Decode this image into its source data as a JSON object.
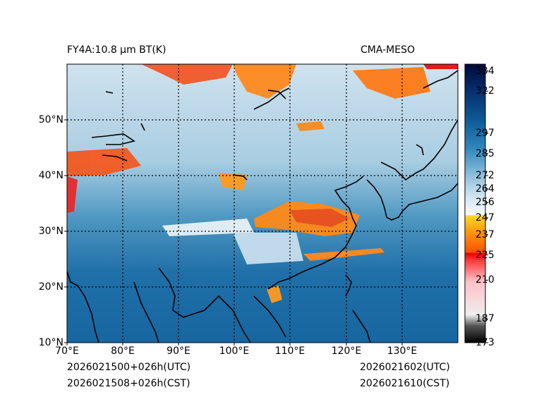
{
  "header": {
    "left_title": "FY4A:10.8 µm BT(K)",
    "right_title": "CMA-MESO"
  },
  "footer": {
    "init_utc": "2026021500+026h(UTC)",
    "init_cst": "2026021508+026h(CST)",
    "valid_utc": "2026021602(UTC)",
    "valid_cst": "2026021610(CST)"
  },
  "map": {
    "lon_range": [
      70,
      140
    ],
    "lat_range": [
      10,
      60
    ],
    "lon_labels": [
      "70°E",
      "80°E",
      "90°E",
      "100°E",
      "110°E",
      "120°E",
      "130°E"
    ],
    "lat_labels": [
      "10°N",
      "20°N",
      "30°N",
      "40°N",
      "50°N"
    ]
  },
  "colorbar": {
    "min": 173,
    "max": 338,
    "ticks": [
      "334",
      "322",
      "297",
      "285",
      "272",
      "264",
      "256",
      "247",
      "237",
      "225",
      "210",
      "187",
      "173"
    ],
    "tick_values": [
      334,
      322,
      297,
      285,
      272,
      264,
      256,
      247,
      237,
      225,
      210,
      187,
      173
    ]
  }
}
